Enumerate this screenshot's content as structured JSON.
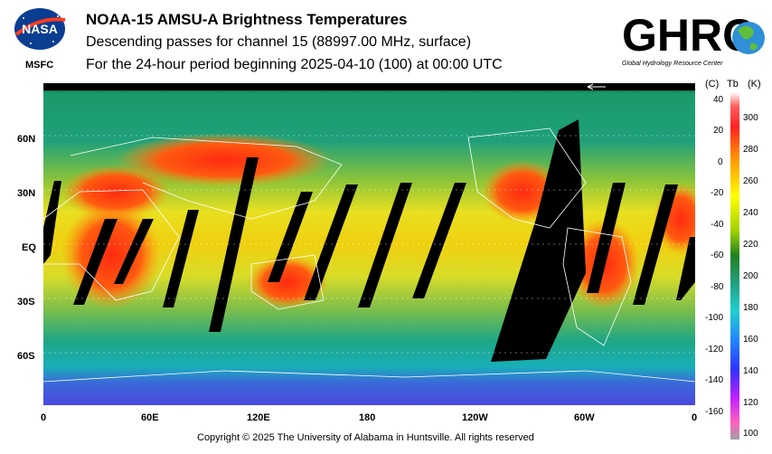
{
  "header": {
    "title": "NOAA-15 AMSU-A Brightness Temperatures",
    "subtitle1": "Descending passes for channel 15 (88997.00 MHz, surface)",
    "subtitle2": "For the 24-hour period beginning 2025-04-10 (100) at 00:00 UTC"
  },
  "logos": {
    "nasa": "NASA",
    "msfc": "MSFC",
    "ghrc": "GHRC",
    "ghrc_sub": "Global Hydrology Resource Center"
  },
  "map": {
    "lat_labels": [
      "60N",
      "30N",
      "EQ",
      "30S",
      "60S"
    ],
    "lon_labels": [
      "0",
      "60E",
      "120E",
      "180",
      "120W",
      "60W",
      "0"
    ]
  },
  "colorbar": {
    "unit_c": "(C)",
    "unit_tb": "Tb",
    "unit_k": "(K)",
    "celsius_ticks": [
      "40",
      "20",
      "0",
      "-20",
      "-40",
      "-60",
      "-80",
      "-100",
      "-120",
      "-140",
      "-160"
    ],
    "kelvin_ticks": [
      "300",
      "280",
      "260",
      "240",
      "220",
      "200",
      "180",
      "160",
      "140",
      "120",
      "100"
    ]
  },
  "footer": {
    "copyright": "Copyright © 2025 The University of Alabama in Huntsville.  All rights reserved"
  }
}
